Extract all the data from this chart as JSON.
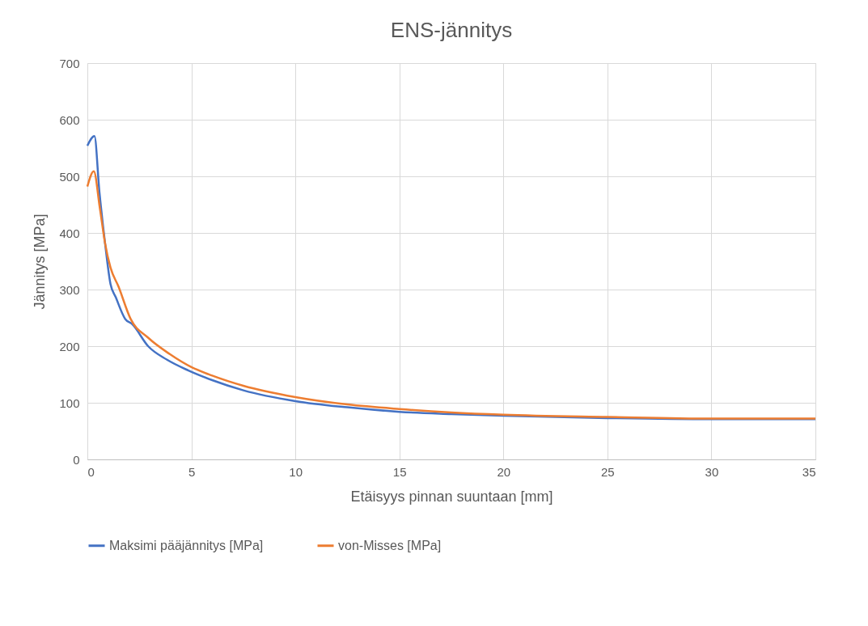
{
  "chart_data": {
    "type": "line",
    "title": "ENS-jännitys",
    "xlabel": "Etäisyys pinnan suuntaan [mm]",
    "ylabel": "Jännitys [MPa]",
    "xlim": [
      0,
      35
    ],
    "xticks": [
      0,
      5,
      10,
      15,
      20,
      25,
      30,
      35
    ],
    "ylim": [
      0,
      700
    ],
    "yticks": [
      0,
      100,
      200,
      300,
      400,
      500,
      600,
      700
    ],
    "grid": true,
    "legend": "bottom",
    "marker": "none",
    "line_style": "solid",
    "series": [
      {
        "name": "Maksimi pääjännitys [MPa]",
        "color": "#4472c4",
        "x": [
          0,
          0.34,
          0.58,
          0.85,
          1.11,
          1.37,
          1.82,
          2.15,
          2.92,
          3.83,
          4.86,
          6,
          7.5,
          10,
          12.5,
          15,
          17.5,
          20,
          25,
          30,
          35
        ],
        "values": [
          554,
          571,
          472,
          382,
          310,
          286,
          248,
          239,
          200,
          176,
          157,
          140,
          122,
          103,
          92,
          84,
          80,
          77,
          73,
          71,
          71
        ]
      },
      {
        "name": "von-Misses [MPa]",
        "color": "#ed7d31",
        "x": [
          0,
          0.31,
          0.6,
          0.85,
          1.11,
          1.5,
          2.08,
          2.92,
          3.96,
          5,
          6,
          7.5,
          10,
          12.5,
          15,
          17.5,
          20,
          25,
          30,
          35
        ],
        "values": [
          482,
          509,
          444,
          382,
          339,
          305,
          248,
          215,
          186,
          163,
          148,
          130,
          110,
          97,
          89,
          83,
          79,
          75,
          72,
          72
        ]
      }
    ]
  }
}
